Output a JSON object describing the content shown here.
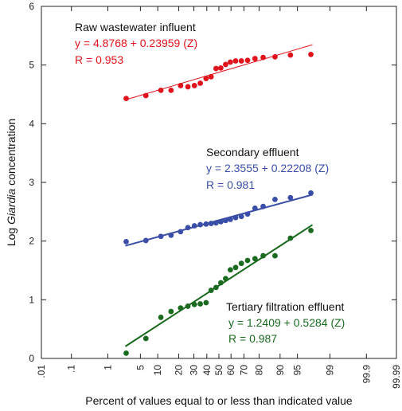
{
  "chart_data": {
    "type": "scatter",
    "xscale": "probability",
    "xlabel": "Percent of values equal to or less than indicated value",
    "ylabel_prefix": "Log ",
    "ylabel_italic": "Giardia",
    "ylabel_suffix": " concentration",
    "ylim": [
      0,
      6
    ],
    "yticks": [
      0,
      1,
      2,
      3,
      4,
      5,
      6
    ],
    "xticks": [
      {
        "value": 0.01,
        "label": ".01"
      },
      {
        "value": 0.1,
        "label": ".1"
      },
      {
        "value": 1,
        "label": "1"
      },
      {
        "value": 5,
        "label": "5"
      },
      {
        "value": 10,
        "label": "10"
      },
      {
        "value": 20,
        "label": "20"
      },
      {
        "value": 30,
        "label": "30"
      },
      {
        "value": 40,
        "label": "40"
      },
      {
        "value": 50,
        "label": "50"
      },
      {
        "value": 60,
        "label": "60"
      },
      {
        "value": 70,
        "label": "70"
      },
      {
        "value": 80,
        "label": "80"
      },
      {
        "value": 90,
        "label": "90"
      },
      {
        "value": 95,
        "label": "95"
      },
      {
        "value": 99,
        "label": "99"
      },
      {
        "value": 99.9,
        "label": "99.9"
      },
      {
        "value": 99.99,
        "label": "99.99"
      }
    ],
    "grid": false,
    "series": [
      {
        "name": "Raw wastewater influent",
        "equation": "y = 4.8768 + 0.23959 (Z)",
        "r": "R = 0.953",
        "color": "#e0121b",
        "fit": {
          "intercept": 4.8768,
          "slope": 0.23959,
          "x_from": 2.5,
          "x_to": 97.5
        },
        "points": [
          {
            "x": 2.6,
            "y": 4.43
          },
          {
            "x": 6.3,
            "y": 4.48
          },
          {
            "x": 11.2,
            "y": 4.57
          },
          {
            "x": 15.8,
            "y": 4.57
          },
          {
            "x": 21.1,
            "y": 4.65
          },
          {
            "x": 25.8,
            "y": 4.63
          },
          {
            "x": 30.4,
            "y": 4.65
          },
          {
            "x": 34.8,
            "y": 4.69
          },
          {
            "x": 39.4,
            "y": 4.77
          },
          {
            "x": 43.5,
            "y": 4.8
          },
          {
            "x": 47.6,
            "y": 4.94
          },
          {
            "x": 51.6,
            "y": 4.95
          },
          {
            "x": 55.6,
            "y": 5.01
          },
          {
            "x": 59.5,
            "y": 5.05
          },
          {
            "x": 63.7,
            "y": 5.07
          },
          {
            "x": 68.1,
            "y": 5.07
          },
          {
            "x": 72.6,
            "y": 5.08
          },
          {
            "x": 77.5,
            "y": 5.11
          },
          {
            "x": 82.3,
            "y": 5.13
          },
          {
            "x": 88.0,
            "y": 5.14
          },
          {
            "x": 93.3,
            "y": 5.17
          },
          {
            "x": 97.3,
            "y": 5.18
          }
        ]
      },
      {
        "name": "Secondary effluent",
        "equation": "y = 2.3555 + 0.22208 (Z)",
        "r": "R = 0.981",
        "color": "#3a4ea8",
        "fit": {
          "intercept": 2.3555,
          "slope": 0.22208,
          "x_from": 2.5,
          "x_to": 97.5
        },
        "points": [
          {
            "x": 2.6,
            "y": 1.99
          },
          {
            "x": 6.3,
            "y": 2.01
          },
          {
            "x": 11.2,
            "y": 2.08
          },
          {
            "x": 15.8,
            "y": 2.1
          },
          {
            "x": 21.1,
            "y": 2.16
          },
          {
            "x": 25.8,
            "y": 2.23
          },
          {
            "x": 30.4,
            "y": 2.26
          },
          {
            "x": 34.8,
            "y": 2.28
          },
          {
            "x": 39.4,
            "y": 2.29
          },
          {
            "x": 43.5,
            "y": 2.3
          },
          {
            "x": 47.6,
            "y": 2.31
          },
          {
            "x": 51.6,
            "y": 2.33
          },
          {
            "x": 55.6,
            "y": 2.35
          },
          {
            "x": 59.5,
            "y": 2.37
          },
          {
            "x": 63.7,
            "y": 2.4
          },
          {
            "x": 68.1,
            "y": 2.42
          },
          {
            "x": 72.6,
            "y": 2.46
          },
          {
            "x": 77.5,
            "y": 2.56
          },
          {
            "x": 82.3,
            "y": 2.59
          },
          {
            "x": 88.0,
            "y": 2.71
          },
          {
            "x": 93.3,
            "y": 2.74
          },
          {
            "x": 97.3,
            "y": 2.82
          }
        ]
      },
      {
        "name": "Tertiary filtration effluent",
        "equation": "y = 1.2409 + 0.5284 (Z)",
        "r": "R = 0.987",
        "color": "#1a6a1f",
        "fit": {
          "intercept": 1.2409,
          "slope": 0.5284,
          "x_from": 2.5,
          "x_to": 97.5
        },
        "points": [
          {
            "x": 2.6,
            "y": 0.09
          },
          {
            "x": 6.3,
            "y": 0.34
          },
          {
            "x": 11.2,
            "y": 0.7
          },
          {
            "x": 15.8,
            "y": 0.8
          },
          {
            "x": 21.1,
            "y": 0.86
          },
          {
            "x": 25.8,
            "y": 0.89
          },
          {
            "x": 30.4,
            "y": 0.92
          },
          {
            "x": 34.8,
            "y": 0.93
          },
          {
            "x": 39.4,
            "y": 0.95
          },
          {
            "x": 43.5,
            "y": 1.16
          },
          {
            "x": 47.6,
            "y": 1.21
          },
          {
            "x": 51.6,
            "y": 1.29
          },
          {
            "x": 55.6,
            "y": 1.36
          },
          {
            "x": 59.5,
            "y": 1.51
          },
          {
            "x": 63.7,
            "y": 1.55
          },
          {
            "x": 68.1,
            "y": 1.62
          },
          {
            "x": 72.6,
            "y": 1.67
          },
          {
            "x": 77.5,
            "y": 1.7
          },
          {
            "x": 82.3,
            "y": 1.75
          },
          {
            "x": 88.0,
            "y": 1.75
          },
          {
            "x": 93.3,
            "y": 2.05
          },
          {
            "x": 97.3,
            "y": 2.18
          }
        ]
      }
    ]
  }
}
